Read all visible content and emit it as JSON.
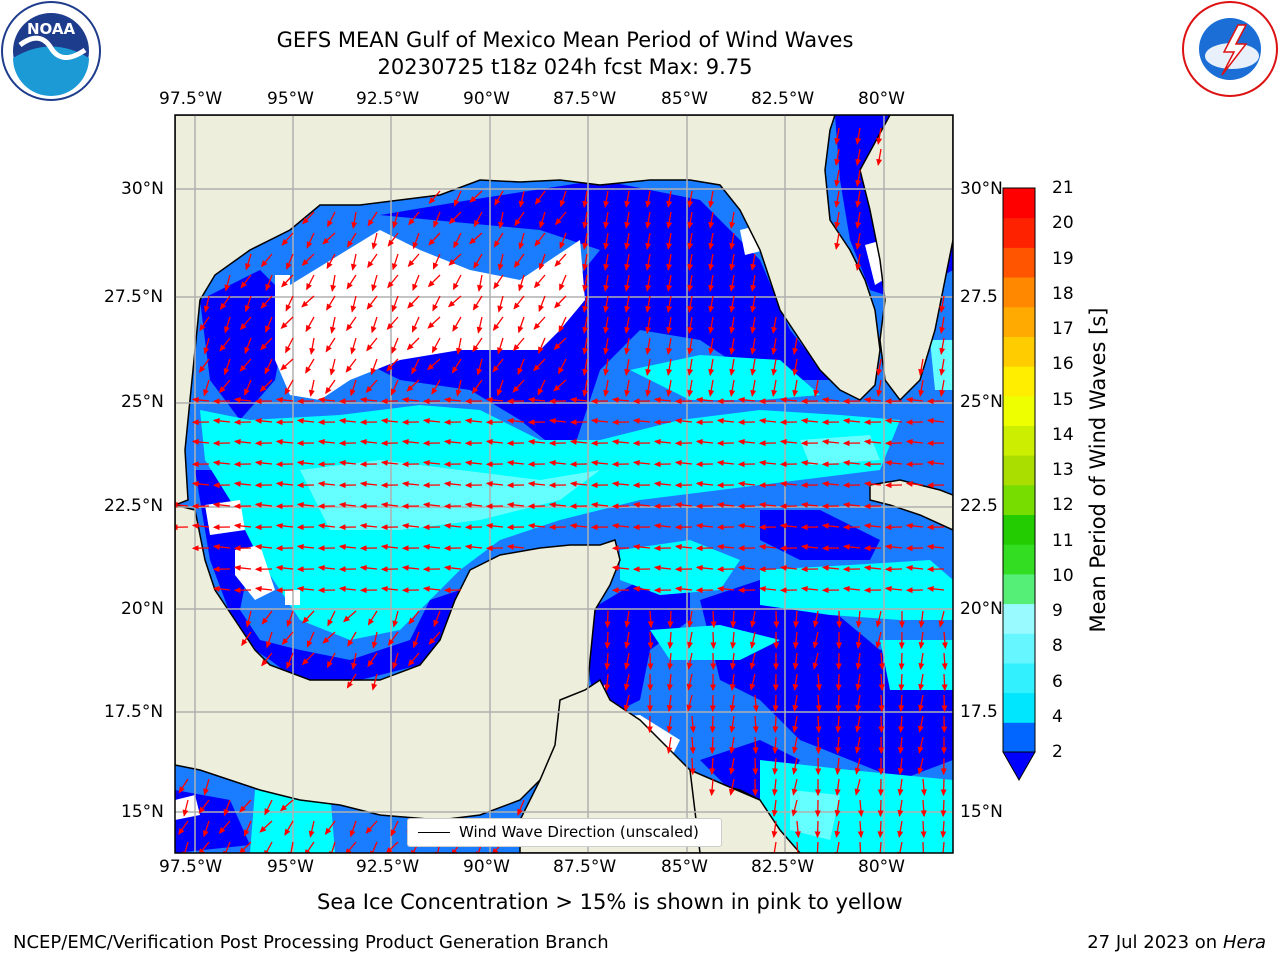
{
  "title_line1": "GEFS MEAN Gulf of Mexico Mean Period of Wind Waves",
  "title_line2": "20230725 t18z 024h fcst   Max: 9.75",
  "lon_labels": [
    "97.5°W",
    "95°W",
    "92.5°W",
    "90°W",
    "87.5°W",
    "85°W",
    "82.5°W",
    "80°W"
  ],
  "lat_labels": [
    "30°N",
    "27.5°N",
    "25°N",
    "22.5°N",
    "20°N",
    "17.5°N",
    "15°N"
  ],
  "lat_labels_right": [
    "30°N",
    "27.5",
    "25°N",
    "22.5",
    "20°N",
    "17.5",
    "15°N"
  ],
  "colorbar": {
    "label": "Mean Period of Wind Waves [s]",
    "ticks": [
      "2",
      "4",
      "6",
      "8",
      "9",
      "10",
      "11",
      "12",
      "13",
      "14",
      "15",
      "16",
      "17",
      "18",
      "19",
      "20",
      "21"
    ],
    "colors": [
      "#0066ff",
      "#00e6ff",
      "#33f0ff",
      "#66f6ff",
      "#99fbff",
      "#55ee77",
      "#33dd22",
      "#22cc00",
      "#77dd00",
      "#aadd00",
      "#ccee00",
      "#eeff00",
      "#ffee00",
      "#ffcc00",
      "#ffaa00",
      "#ff8800",
      "#ff5500",
      "#ff2200",
      "#ff0000"
    ],
    "under_color": "#0000ff"
  },
  "legend": {
    "label": "Wind Wave Direction (unscaled)"
  },
  "sea_ice_note": "Sea Ice Concentration > 15% is shown in pink to yellow",
  "footer_left": "NCEP/EMC/Verification Post Processing Product Generation Branch",
  "footer_date": "27 Jul 2023 on ",
  "footer_machine": "Hera",
  "logos": {
    "noaa_text": "NOAA",
    "noaa_ring": "NATIONAL OCEANIC AND ATMOSPHERIC ADMINISTRATION · U.S. DEPARTMENT OF COMMERCE",
    "nws_ring": "NATIONAL WEATHER SERVICE"
  },
  "map_colors": {
    "land": "#eeeedc",
    "deep_blue": "#0000ff",
    "mid_blue": "#1a7cff",
    "cyan": "#00ffff",
    "light_cyan": "#66ffff",
    "arrow": "#ff0000",
    "grid": "#b0b0b0"
  }
}
